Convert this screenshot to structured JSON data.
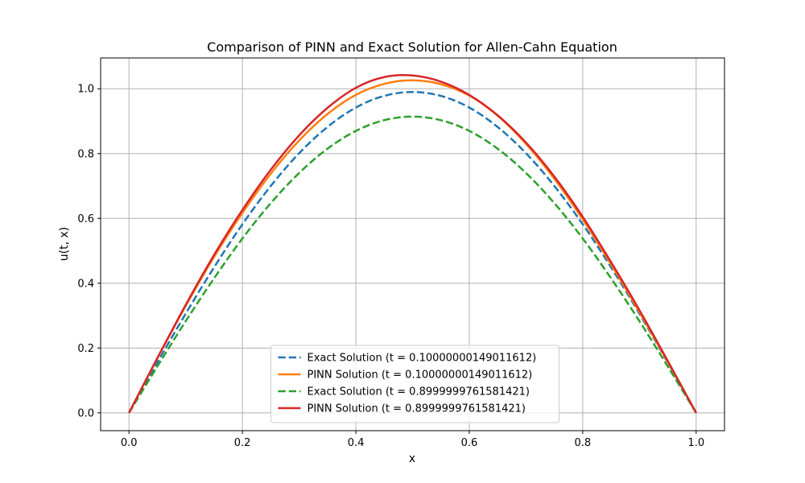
{
  "chart_data": {
    "type": "line",
    "title": "Comparison of PINN and Exact Solution for Allen-Cahn Equation",
    "xlabel": "x",
    "ylabel": "u(t, x)",
    "xlim": [
      -0.05,
      1.05
    ],
    "ylim": [
      -0.055,
      1.095
    ],
    "xticks": [
      "0.0",
      "0.2",
      "0.4",
      "0.6",
      "0.8",
      "1.0"
    ],
    "yticks": [
      "0.0",
      "0.2",
      "0.4",
      "0.6",
      "0.8",
      "1.0"
    ],
    "grid": true,
    "legend_position": "lower center",
    "x": [
      0.0,
      0.05,
      0.1,
      0.15,
      0.2,
      0.25,
      0.3,
      0.35,
      0.4,
      0.45,
      0.5,
      0.55,
      0.6,
      0.65,
      0.7,
      0.75,
      0.8,
      0.85,
      0.9,
      0.95,
      1.0
    ],
    "series": [
      {
        "name": "Exact Solution (t = 0.10000000149011612)",
        "color": "#1f77b4",
        "dash": "dashed",
        "values": [
          0.0,
          0.155,
          0.306,
          0.449,
          0.582,
          0.7,
          0.801,
          0.882,
          0.942,
          0.978,
          0.99,
          0.978,
          0.942,
          0.882,
          0.801,
          0.7,
          0.582,
          0.449,
          0.306,
          0.155,
          0.0
        ]
      },
      {
        "name": "PINN Solution (t = 0.10000000149011612)",
        "color": "#ff7f0e",
        "dash": "solid",
        "values": [
          0.0,
          0.168,
          0.33,
          0.481,
          0.617,
          0.738,
          0.84,
          0.922,
          0.981,
          1.015,
          1.026,
          1.014,
          0.979,
          0.917,
          0.83,
          0.722,
          0.597,
          0.458,
          0.311,
          0.157,
          0.0
        ]
      },
      {
        "name": "Exact Solution (t = 0.8999999761581421)",
        "color": "#2ca02c",
        "dash": "dashed",
        "values": [
          0.0,
          0.143,
          0.283,
          0.415,
          0.538,
          0.647,
          0.74,
          0.815,
          0.87,
          0.903,
          0.914,
          0.903,
          0.87,
          0.815,
          0.74,
          0.647,
          0.538,
          0.415,
          0.283,
          0.143,
          0.0
        ]
      },
      {
        "name": "PINN Solution (t = 0.8999999761581421)",
        "color": "#d62728",
        "dash": "solid",
        "values": [
          0.0,
          0.169,
          0.333,
          0.487,
          0.626,
          0.75,
          0.856,
          0.941,
          1.003,
          1.036,
          1.041,
          1.022,
          0.981,
          0.918,
          0.834,
          0.729,
          0.605,
          0.465,
          0.317,
          0.16,
          0.0
        ]
      }
    ]
  }
}
